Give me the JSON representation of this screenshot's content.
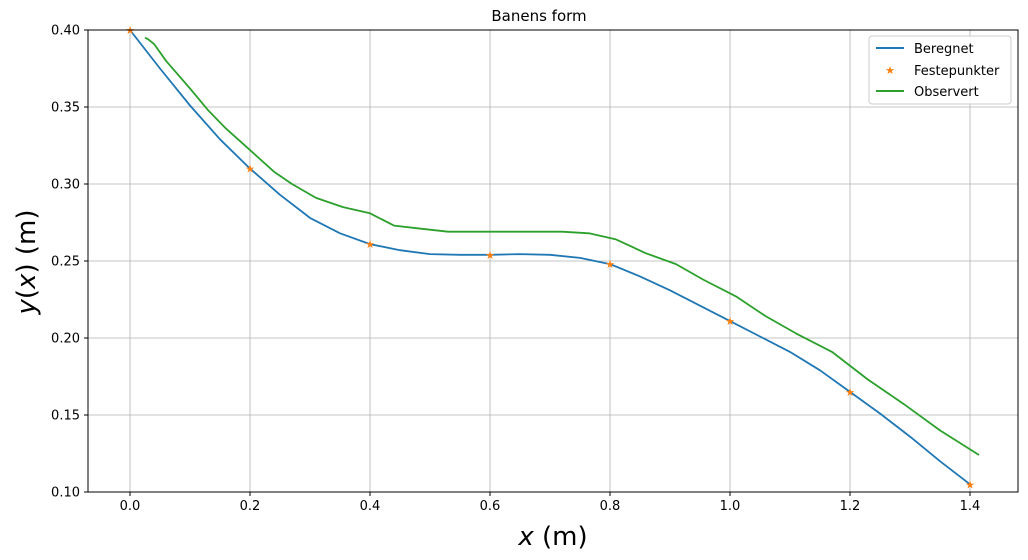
{
  "chart_data": {
    "type": "line",
    "title": "Banens form",
    "xlabel": {
      "var": "x",
      "unit": " (m)"
    },
    "ylabel": {
      "var": "y",
      "arg": "x",
      "unit": " (m)"
    },
    "xlim": [
      -0.07,
      1.48
    ],
    "ylim": [
      0.1,
      0.4
    ],
    "xticks": [
      0.0,
      0.2,
      0.4,
      0.6,
      0.8,
      1.0,
      1.2,
      1.4
    ],
    "xtick_labels": [
      "0.0",
      "0.2",
      "0.4",
      "0.6",
      "0.8",
      "1.0",
      "1.2",
      "1.4"
    ],
    "yticks": [
      0.1,
      0.15,
      0.2,
      0.25,
      0.3,
      0.35,
      0.4
    ],
    "ytick_labels": [
      "0.10",
      "0.15",
      "0.20",
      "0.25",
      "0.30",
      "0.35",
      "0.40"
    ],
    "grid": true,
    "legend_position": "top-right",
    "series": [
      {
        "name": "Beregnet",
        "color": "#1f77b4",
        "style": "line",
        "x": [
          0.0,
          0.05,
          0.1,
          0.15,
          0.2,
          0.25,
          0.3,
          0.35,
          0.4,
          0.45,
          0.5,
          0.55,
          0.6,
          0.65,
          0.7,
          0.75,
          0.8,
          0.85,
          0.9,
          0.95,
          1.0,
          1.05,
          1.1,
          1.15,
          1.2,
          1.25,
          1.3,
          1.35,
          1.4
        ],
        "y": [
          0.4,
          0.375,
          0.351,
          0.329,
          0.31,
          0.293,
          0.278,
          0.268,
          0.261,
          0.257,
          0.2545,
          0.254,
          0.254,
          0.2545,
          0.254,
          0.252,
          0.248,
          0.24,
          0.231,
          0.221,
          0.211,
          0.201,
          0.191,
          0.179,
          0.165,
          0.151,
          0.136,
          0.12,
          0.105
        ]
      },
      {
        "name": "Festepunkter",
        "color": "#ff7f0e",
        "style": "star",
        "x": [
          0.0,
          0.2,
          0.4,
          0.6,
          0.8,
          1.0,
          1.2,
          1.4
        ],
        "y": [
          0.4,
          0.31,
          0.261,
          0.254,
          0.248,
          0.211,
          0.165,
          0.105
        ]
      },
      {
        "name": "Observert",
        "color": "#2ca02c",
        "style": "line",
        "x": [
          0.025,
          0.03,
          0.04,
          0.06,
          0.1,
          0.13,
          0.16,
          0.2,
          0.24,
          0.27,
          0.31,
          0.355,
          0.4,
          0.44,
          0.485,
          0.53,
          0.58,
          0.63,
          0.68,
          0.72,
          0.765,
          0.81,
          0.86,
          0.91,
          0.955,
          1.01,
          1.06,
          1.11,
          1.17,
          1.23,
          1.29,
          1.35,
          1.415
        ],
        "y": [
          0.395,
          0.394,
          0.391,
          0.38,
          0.362,
          0.348,
          0.336,
          0.322,
          0.308,
          0.3,
          0.291,
          0.285,
          0.281,
          0.273,
          0.271,
          0.269,
          0.269,
          0.269,
          0.269,
          0.269,
          0.268,
          0.264,
          0.255,
          0.248,
          0.238,
          0.227,
          0.214,
          0.203,
          0.191,
          0.173,
          0.157,
          0.14,
          0.124
        ]
      }
    ]
  }
}
